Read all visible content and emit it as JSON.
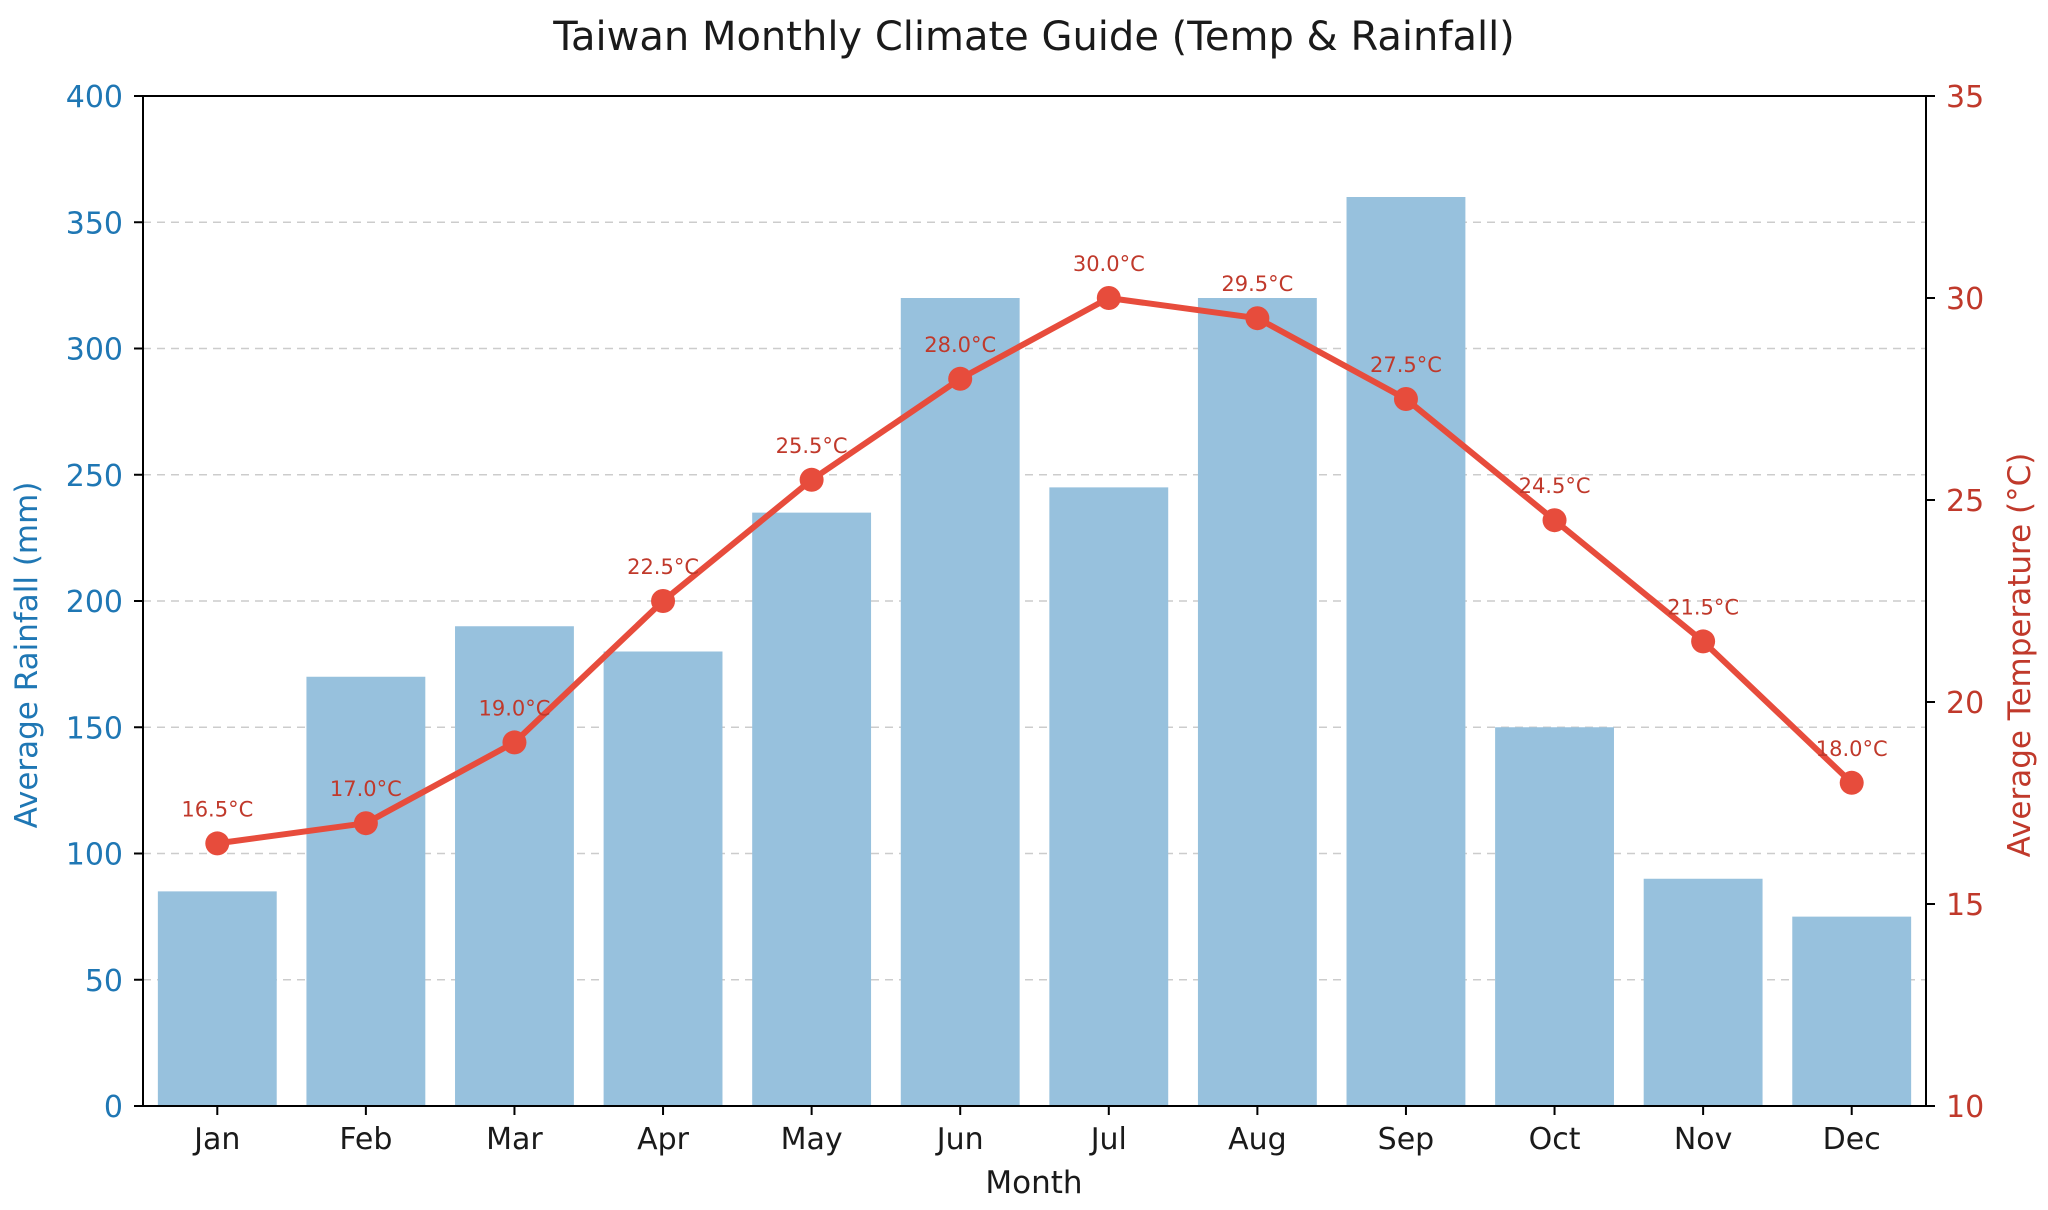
{
  "chart_data": {
    "type": "bar+line",
    "title": "Taiwan Monthly Climate Guide (Temp & Rainfall)",
    "xlabel": "Month",
    "categories": [
      "Jan",
      "Feb",
      "Mar",
      "Apr",
      "May",
      "Jun",
      "Jul",
      "Aug",
      "Sep",
      "Oct",
      "Nov",
      "Dec"
    ],
    "series": [
      {
        "name": "Average Rainfall (mm)",
        "kind": "bar",
        "axis": "left",
        "color": "#97c1dd",
        "values": [
          85,
          170,
          190,
          180,
          235,
          320,
          245,
          320,
          360,
          150,
          90,
          75
        ]
      },
      {
        "name": "Average Temperature (°C)",
        "kind": "line",
        "axis": "right",
        "color": "#e74c3c",
        "values": [
          16.5,
          17.0,
          19.0,
          22.5,
          25.5,
          28.0,
          30.0,
          29.5,
          27.5,
          24.5,
          21.5,
          18.0
        ],
        "data_labels": [
          "16.5°C",
          "17.0°C",
          "19.0°C",
          "22.5°C",
          "25.5°C",
          "28.0°C",
          "30.0°C",
          "29.5°C",
          "27.5°C",
          "24.5°C",
          "21.5°C",
          "18.0°C"
        ]
      }
    ],
    "y_left": {
      "label": "Average Rainfall (mm)",
      "lim": [
        0,
        400
      ],
      "ticks": [
        0,
        50,
        100,
        150,
        200,
        250,
        300,
        350,
        400
      ],
      "color": "#1f77b4"
    },
    "y_right": {
      "label": "Average Temperature (°C)",
      "lim": [
        10,
        35
      ],
      "ticks": [
        10,
        15,
        20,
        25,
        30,
        35
      ],
      "color": "#c0392b"
    },
    "grid": "horizontal dashed"
  }
}
